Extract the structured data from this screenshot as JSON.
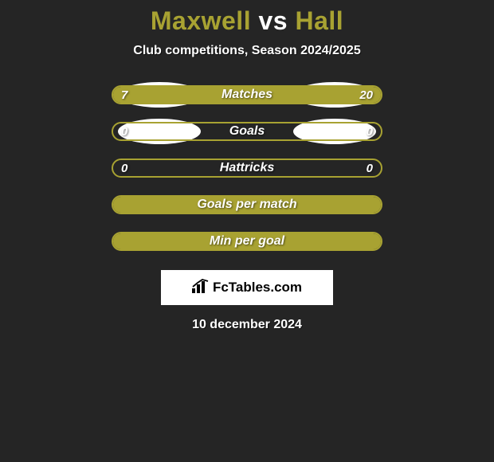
{
  "title": {
    "player1": "Maxwell",
    "vs": "vs",
    "player2": "Hall"
  },
  "subtitle": "Club competitions, Season 2024/2025",
  "colors": {
    "accent": "#a8a232",
    "background": "#252525",
    "white": "#ffffff",
    "text": "#ffffff"
  },
  "bars": [
    {
      "label": "Matches",
      "left_value": "7",
      "right_value": "20",
      "left_pct": 26,
      "right_pct": 74,
      "left_fill": "#a8a232",
      "right_fill": "#a8a232",
      "border_color": "#a8a232",
      "show_ellipses": true
    },
    {
      "label": "Goals",
      "left_value": "0",
      "right_value": "0",
      "left_pct": 0,
      "right_pct": 0,
      "left_fill": "#a8a232",
      "right_fill": "#a8a232",
      "border_color": "#a8a232",
      "show_ellipses": true
    },
    {
      "label": "Hattricks",
      "left_value": "0",
      "right_value": "0",
      "left_pct": 0,
      "right_pct": 0,
      "left_fill": "#a8a232",
      "right_fill": "#a8a232",
      "border_color": "#a8a232",
      "show_ellipses": false
    },
    {
      "label": "Goals per match",
      "left_value": "",
      "right_value": "",
      "left_pct": 50,
      "right_pct": 50,
      "left_fill": "#a8a232",
      "right_fill": "#a8a232",
      "border_color": "#a8a232",
      "show_ellipses": false
    },
    {
      "label": "Min per goal",
      "left_value": "",
      "right_value": "",
      "left_pct": 50,
      "right_pct": 50,
      "left_fill": "#a8a232",
      "right_fill": "#a8a232",
      "border_color": "#a8a232",
      "show_ellipses": false
    }
  ],
  "brand": {
    "icon_name": "bars-icon",
    "text": "FcTables.com"
  },
  "date_line": "10 december 2024"
}
